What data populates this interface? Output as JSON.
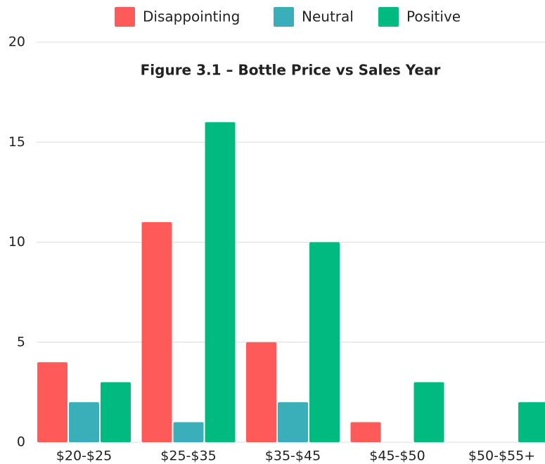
{
  "chart_data": {
    "type": "bar",
    "title": "Figure 3.1 – Bottle Price vs Sales Year",
    "categories": [
      "$20-$25",
      "$25-$35",
      "$35-$45",
      "$45-$50",
      "$50-$55+"
    ],
    "series": [
      {
        "name": "Disappointing",
        "color": "#ff5a5a",
        "values": [
          4,
          11,
          5,
          1,
          0
        ]
      },
      {
        "name": "Neutral",
        "color": "#3aafb9",
        "values": [
          2,
          1,
          2,
          0,
          0
        ]
      },
      {
        "name": "Positive",
        "color": "#00ba7f",
        "values": [
          3,
          16,
          10,
          3,
          2
        ]
      }
    ],
    "ylim": [
      0,
      20
    ],
    "yticks": [
      0,
      5,
      10,
      15,
      20
    ],
    "grid": true,
    "legend": "top"
  }
}
